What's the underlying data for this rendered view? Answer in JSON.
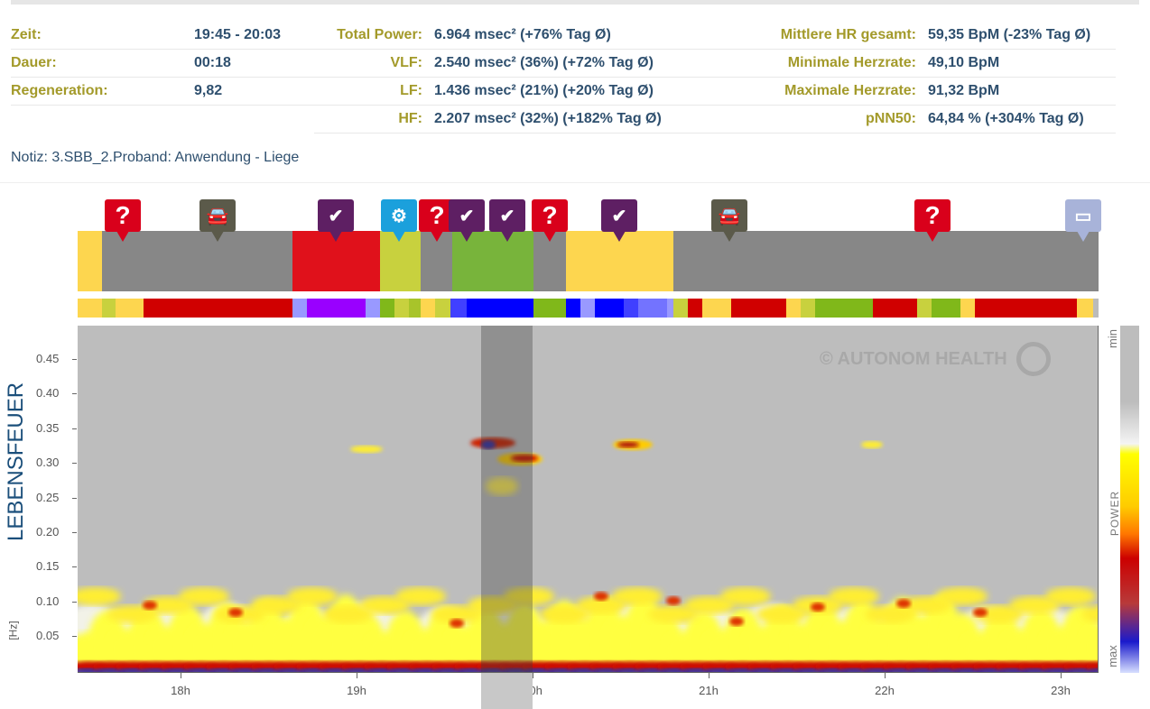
{
  "stats": {
    "left": [
      {
        "label": "Zeit:",
        "value": "19:45 - 20:03"
      },
      {
        "label": "Dauer:",
        "value": "00:18"
      },
      {
        "label": "Regeneration:",
        "value": "9,82"
      }
    ],
    "middle": [
      {
        "label": "Total Power:",
        "value": "6.964 msec² (+76% Tag Ø)"
      },
      {
        "label": "VLF:",
        "value": "2.540 msec² (36%) (+72% Tag Ø)"
      },
      {
        "label": "LF:",
        "value": "1.436 msec² (21%) (+20% Tag Ø)"
      },
      {
        "label": "HF:",
        "value": "2.207 msec² (32%) (+182% Tag Ø)"
      }
    ],
    "right": [
      {
        "label": "Mittlere HR gesamt:",
        "value": "59,35 BpM (-23% Tag Ø)"
      },
      {
        "label": "Minimale Herzrate:",
        "value": "49,10 BpM"
      },
      {
        "label": "Maximale Herzrate:",
        "value": "91,32 BpM"
      },
      {
        "label": "pNN50:",
        "value": "64,84 % (+304% Tag Ø)"
      }
    ]
  },
  "note": "Notiz: 3.SBB_2.Proband: Anwendung - Liege",
  "markers": [
    {
      "icon": "question-icon",
      "color": "#d9001b"
    },
    {
      "icon": "car-icon",
      "color": "#5b5a4a"
    },
    {
      "icon": "bed-icon",
      "color": "#5e1f63"
    },
    {
      "icon": "brain-icon",
      "color": "#1ba0dc"
    },
    {
      "icon": "question-icon",
      "color": "#d9001b"
    },
    {
      "icon": "bed-icon",
      "color": "#5e1f63"
    },
    {
      "icon": "bed-icon",
      "color": "#5e1f63"
    },
    {
      "icon": "question-icon",
      "color": "#d9001b"
    },
    {
      "icon": "bed-icon",
      "color": "#5e1f63"
    },
    {
      "icon": "car-icon",
      "color": "#5b5a4a"
    },
    {
      "icon": "question-icon",
      "color": "#d9001b"
    },
    {
      "icon": "monitor-icon",
      "color": "#a8b3d9"
    }
  ],
  "chart": {
    "ylabel": "LEBENSFEUER",
    "yunit": "[Hz]",
    "yticks": [
      "0.45",
      "0.40",
      "0.35",
      "0.30",
      "0.25",
      "0.20",
      "0.15",
      "0.10",
      "0.05"
    ],
    "xticks": [
      "18h",
      "19h",
      "20h",
      "21h",
      "22h",
      "23h"
    ],
    "watermark": "© AUTONOM HEALTH",
    "legend": {
      "title": "POWER",
      "min": "min",
      "max": "max"
    },
    "selection": {
      "from": "19:45",
      "to": "20:03"
    }
  }
}
